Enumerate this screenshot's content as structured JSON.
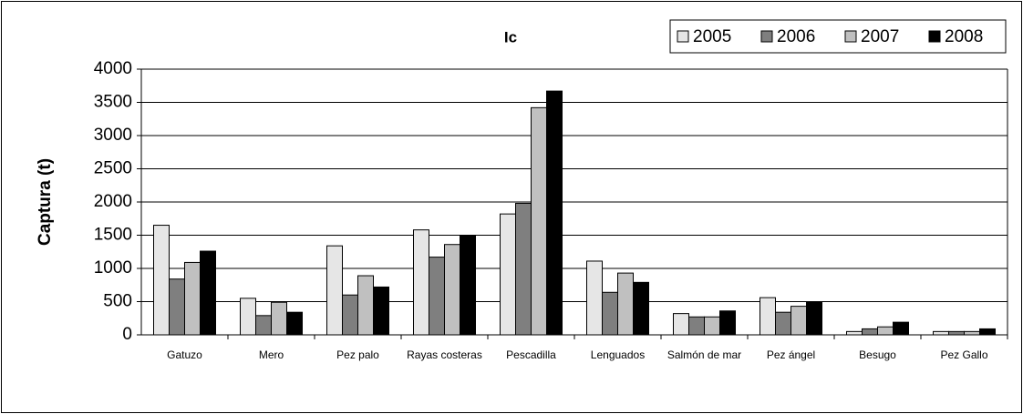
{
  "chart_data": {
    "type": "bar",
    "title": "Ic",
    "y_label": "Captura (t)",
    "categories": [
      "Gatuzo",
      "Mero",
      "Pez palo",
      "Rayas costeras",
      "Pescadilla",
      "Lenguados",
      "Salmón de mar",
      "Pez ángel",
      "Besugo",
      "Pez Gallo"
    ],
    "series": [
      {
        "name": "2005",
        "color": "#e6e6e6",
        "values": [
          1650,
          550,
          1340,
          1580,
          1820,
          1110,
          320,
          560,
          50,
          50
        ]
      },
      {
        "name": "2006",
        "color": "#7f7f7f",
        "values": [
          840,
          290,
          600,
          1170,
          1980,
          640,
          270,
          340,
          90,
          50
        ]
      },
      {
        "name": "2007",
        "color": "#c0c0c0",
        "values": [
          1090,
          490,
          890,
          1360,
          3420,
          930,
          270,
          430,
          120,
          50
        ]
      },
      {
        "name": "2008",
        "color": "#000000",
        "values": [
          1260,
          340,
          720,
          1500,
          3670,
          790,
          360,
          490,
          190,
          90
        ]
      }
    ],
    "ylim": [
      0,
      4000
    ],
    "yticks": [
      0,
      500,
      1000,
      1500,
      2000,
      2500,
      3000,
      3500,
      4000
    ],
    "grid": true,
    "legend": "top-right"
  }
}
